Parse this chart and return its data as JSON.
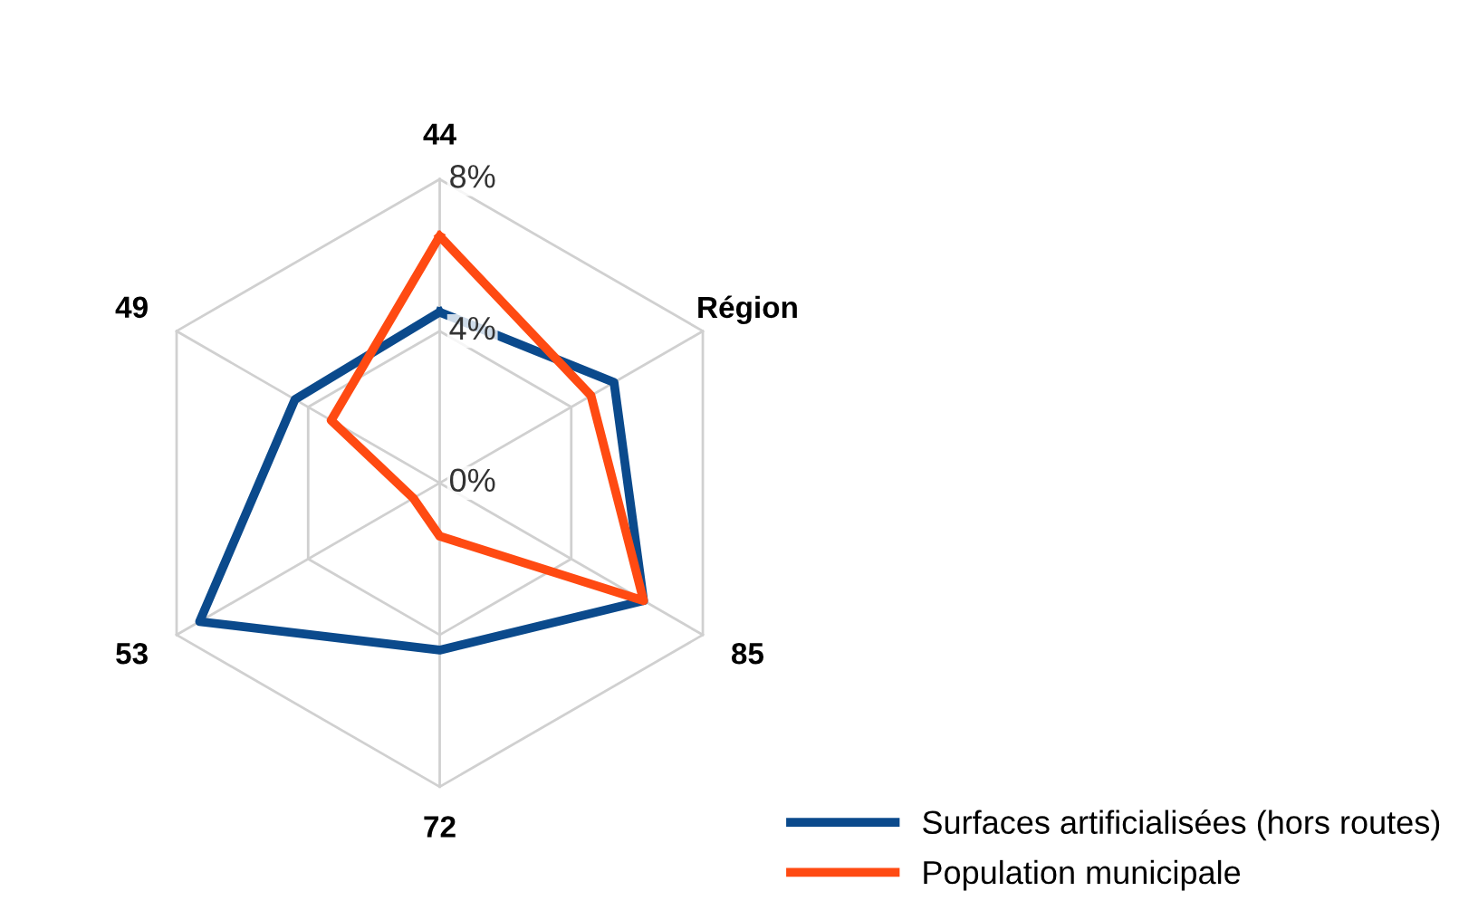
{
  "chart_data": {
    "type": "radar",
    "categories": [
      "44",
      "Région",
      "85",
      "72",
      "53",
      "49"
    ],
    "series": [
      {
        "name": "Surfaces artificialisées (hors routes)",
        "color": "#0b4a8c",
        "values": [
          4.5,
          5.3,
          6.2,
          4.4,
          7.3,
          4.4
        ]
      },
      {
        "name": "Population municipale",
        "color": "#ff4a12",
        "values": [
          6.5,
          4.6,
          6.2,
          1.4,
          0.8,
          3.3
        ]
      }
    ],
    "ylim": [
      0,
      8
    ],
    "yticks": [
      {
        "value": 0,
        "label": "0%"
      },
      {
        "value": 4,
        "label": "4%"
      },
      {
        "value": 8,
        "label": "8%"
      }
    ],
    "grid": true,
    "legend": "bottom right",
    "marker": "none",
    "line_style": "solid"
  }
}
